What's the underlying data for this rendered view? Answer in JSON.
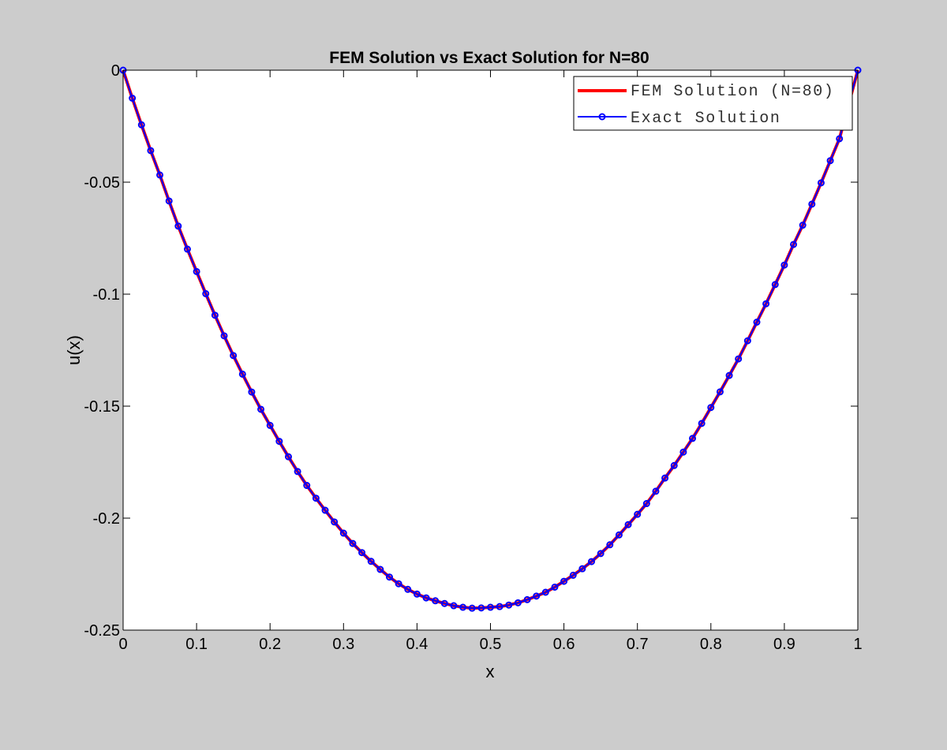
{
  "chart_data": {
    "type": "line",
    "title": "FEM Solution vs Exact Solution for N=80",
    "xlabel": "x",
    "ylabel": "u(x)",
    "xlim": [
      0,
      1
    ],
    "ylim": [
      -0.25,
      0
    ],
    "x_ticks": [
      "0",
      "0.1",
      "0.2",
      "0.3",
      "0.4",
      "0.5",
      "0.6",
      "0.7",
      "0.8",
      "0.9",
      "1"
    ],
    "y_ticks": [
      "0",
      "-0.05",
      "-0.1",
      "-0.15",
      "-0.2",
      "-0.25"
    ],
    "grid": false,
    "legend_position": "top-right",
    "background": "#cccccc",
    "plot_area_color": "#ffffff",
    "series": [
      {
        "name": "FEM Solution (N=80)",
        "color": "#ff0000",
        "marker": "none",
        "x": [
          0,
          0.0125,
          0.025,
          0.0375,
          0.05,
          0.0625,
          0.075,
          0.0875,
          0.1,
          0.1125,
          0.125,
          0.1375,
          0.15,
          0.1625,
          0.175,
          0.1875,
          0.2,
          0.2125,
          0.225,
          0.2375,
          0.25,
          0.2625,
          0.275,
          0.2875,
          0.3,
          0.3125,
          0.325,
          0.3375,
          0.35,
          0.3625,
          0.375,
          0.3875,
          0.4,
          0.4125,
          0.425,
          0.4375,
          0.45,
          0.4625,
          0.475,
          0.4875,
          0.5,
          0.5125,
          0.525,
          0.5375,
          0.55,
          0.5625,
          0.575,
          0.5875,
          0.6,
          0.6125,
          0.625,
          0.6375,
          0.65,
          0.6625,
          0.675,
          0.6875,
          0.7,
          0.7125,
          0.725,
          0.7375,
          0.75,
          0.7625,
          0.775,
          0.7875,
          0.8,
          0.8125,
          0.825,
          0.8375,
          0.85,
          0.8625,
          0.875,
          0.8875,
          0.9,
          0.9125,
          0.925,
          0.9375,
          0.95,
          0.9625,
          0.975,
          0.9875,
          1
        ],
        "y": [
          0,
          -0.0125,
          -0.0244,
          -0.0359,
          -0.0468,
          -0.0584,
          -0.0696,
          -0.0799,
          -0.0899,
          -0.0998,
          -0.1094,
          -0.1186,
          -0.1274,
          -0.1357,
          -0.1437,
          -0.1514,
          -0.1586,
          -0.1657,
          -0.1726,
          -0.1792,
          -0.1854,
          -0.1911,
          -0.1965,
          -0.2017,
          -0.2067,
          -0.2113,
          -0.2154,
          -0.2193,
          -0.2229,
          -0.2263,
          -0.2293,
          -0.2318,
          -0.2339,
          -0.2356,
          -0.2369,
          -0.2381,
          -0.2391,
          -0.2398,
          -0.2402,
          -0.2401,
          -0.2398,
          -0.2395,
          -0.2388,
          -0.2378,
          -0.2364,
          -0.2348,
          -0.2331,
          -0.2308,
          -0.2282,
          -0.2255,
          -0.2226,
          -0.2194,
          -0.2158,
          -0.2119,
          -0.2075,
          -0.2029,
          -0.1983,
          -0.1935,
          -0.188,
          -0.1821,
          -0.1765,
          -0.1705,
          -0.1644,
          -0.1577,
          -0.1506,
          -0.1436,
          -0.1363,
          -0.1289,
          -0.1208,
          -0.1125,
          -0.1043,
          -0.0957,
          -0.087,
          -0.0778,
          -0.0692,
          -0.0598,
          -0.0503,
          -0.0404,
          -0.0306,
          -0.0152,
          0
        ]
      },
      {
        "name": "Exact Solution",
        "color": "#0000ff",
        "marker": "circle",
        "x": [
          0,
          0.0125,
          0.025,
          0.0375,
          0.05,
          0.0625,
          0.075,
          0.0875,
          0.1,
          0.1125,
          0.125,
          0.1375,
          0.15,
          0.1625,
          0.175,
          0.1875,
          0.2,
          0.2125,
          0.225,
          0.2375,
          0.25,
          0.2625,
          0.275,
          0.2875,
          0.3,
          0.3125,
          0.325,
          0.3375,
          0.35,
          0.3625,
          0.375,
          0.3875,
          0.4,
          0.4125,
          0.425,
          0.4375,
          0.45,
          0.4625,
          0.475,
          0.4875,
          0.5,
          0.5125,
          0.525,
          0.5375,
          0.55,
          0.5625,
          0.575,
          0.5875,
          0.6,
          0.6125,
          0.625,
          0.6375,
          0.65,
          0.6625,
          0.675,
          0.6875,
          0.7,
          0.7125,
          0.725,
          0.7375,
          0.75,
          0.7625,
          0.775,
          0.7875,
          0.8,
          0.8125,
          0.825,
          0.8375,
          0.85,
          0.8625,
          0.875,
          0.8875,
          0.9,
          0.9125,
          0.925,
          0.9375,
          0.95,
          0.9625,
          0.975,
          0.9875,
          1
        ],
        "y": [
          0,
          -0.0125,
          -0.0244,
          -0.0359,
          -0.0468,
          -0.0584,
          -0.0696,
          -0.0799,
          -0.0899,
          -0.0998,
          -0.1094,
          -0.1186,
          -0.1274,
          -0.1357,
          -0.1437,
          -0.1514,
          -0.1586,
          -0.1657,
          -0.1726,
          -0.1792,
          -0.1854,
          -0.1911,
          -0.1965,
          -0.2017,
          -0.2067,
          -0.2113,
          -0.2154,
          -0.2193,
          -0.2229,
          -0.2263,
          -0.2293,
          -0.2318,
          -0.2339,
          -0.2356,
          -0.2369,
          -0.2381,
          -0.2391,
          -0.2398,
          -0.2402,
          -0.2401,
          -0.2398,
          -0.2395,
          -0.2388,
          -0.2378,
          -0.2364,
          -0.2348,
          -0.2331,
          -0.2308,
          -0.2282,
          -0.2255,
          -0.2226,
          -0.2194,
          -0.2158,
          -0.2119,
          -0.2075,
          -0.2029,
          -0.1983,
          -0.1935,
          -0.188,
          -0.1821,
          -0.1765,
          -0.1705,
          -0.1644,
          -0.1577,
          -0.1506,
          -0.1436,
          -0.1363,
          -0.1289,
          -0.1208,
          -0.1125,
          -0.1043,
          -0.0957,
          -0.087,
          -0.0778,
          -0.0692,
          -0.0598,
          -0.0503,
          -0.0404,
          -0.0306,
          -0.0152,
          0
        ]
      }
    ]
  }
}
